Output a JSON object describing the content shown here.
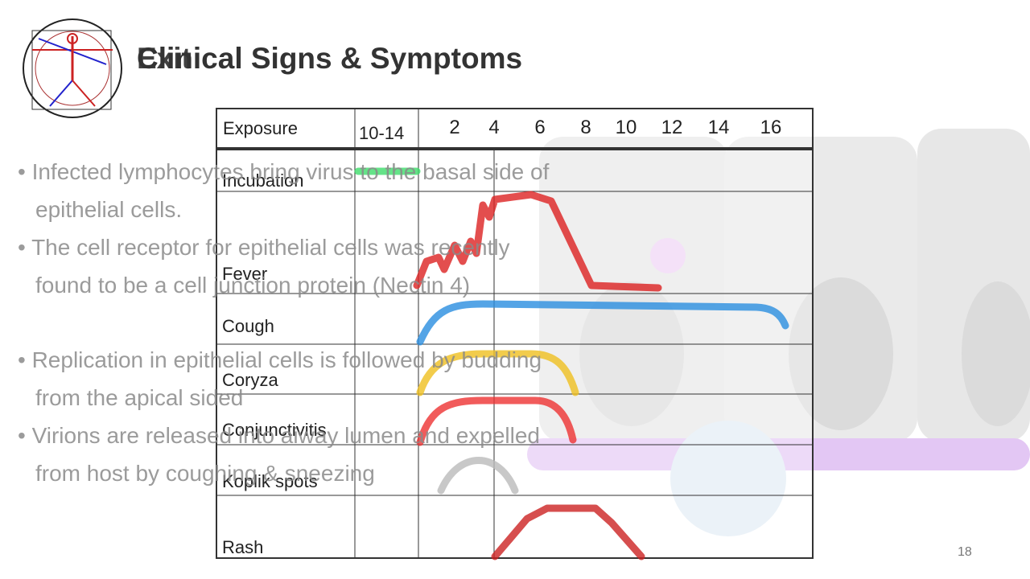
{
  "header": {
    "title": "Clinical Signs & Symptoms",
    "ghost_title": "Exit"
  },
  "bullets": [
    "Infected lymphocytes bring virus to the basal side of epithelial cells.",
    "The cell receptor for epithelial cells was recently found to be a cell junction protein (Nectin 4)",
    "Replication in epithelial cells is followed by budding from the apical sided",
    "Virions are released into aiway lumen and expelled from host by coughing & sneezing"
  ],
  "table": {
    "header": {
      "label": "Exposure",
      "incubation_days": "10-14",
      "days": [
        "2",
        "4",
        "6",
        "8",
        "10",
        "12",
        "14",
        "16"
      ]
    },
    "rows": [
      "Incubation",
      "Fever",
      "Cough",
      "Coryza",
      "Conjunctivitis",
      "Koplik spots",
      "Rash"
    ]
  },
  "slide_number": "18"
}
